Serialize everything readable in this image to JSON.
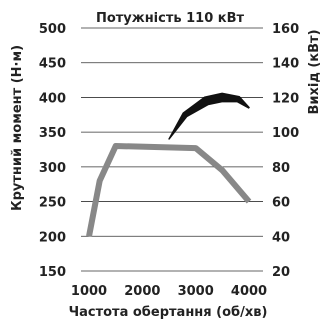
{
  "chart_data": {
    "type": "line",
    "title": "Потужність 110 кВт",
    "xlabel": "Частота обертання (об/хв)",
    "ylabel_left": "Крутний момент (Н·м)",
    "ylabel_right": "Вихід (кВт)",
    "x_ticks": [
      "1000",
      "2000",
      "3000",
      "4000"
    ],
    "x_range": [
      1000,
      4000
    ],
    "y_left_ticks": [
      "150",
      "200",
      "250",
      "300",
      "350",
      "400",
      "450",
      "500"
    ],
    "y_left_range": [
      150,
      500
    ],
    "y_right_ticks": [
      "20",
      "40",
      "60",
      "80",
      "100",
      "120",
      "140",
      "160"
    ],
    "y_right_range": [
      20,
      160
    ],
    "grid": "horizontal",
    "series": [
      {
        "axis": "left",
        "color": "#888888",
        "x": [
          1000,
          1200,
          1500,
          3000,
          3500,
          4000
        ],
        "y": [
          200,
          280,
          330,
          327,
          295,
          250
        ]
      },
      {
        "axis": "right",
        "color": "#111111",
        "x": [
          2500,
          2800,
          3200,
          3500,
          3800,
          4000
        ],
        "y": [
          96,
          110,
          118,
          120,
          119,
          114
        ]
      }
    ]
  }
}
